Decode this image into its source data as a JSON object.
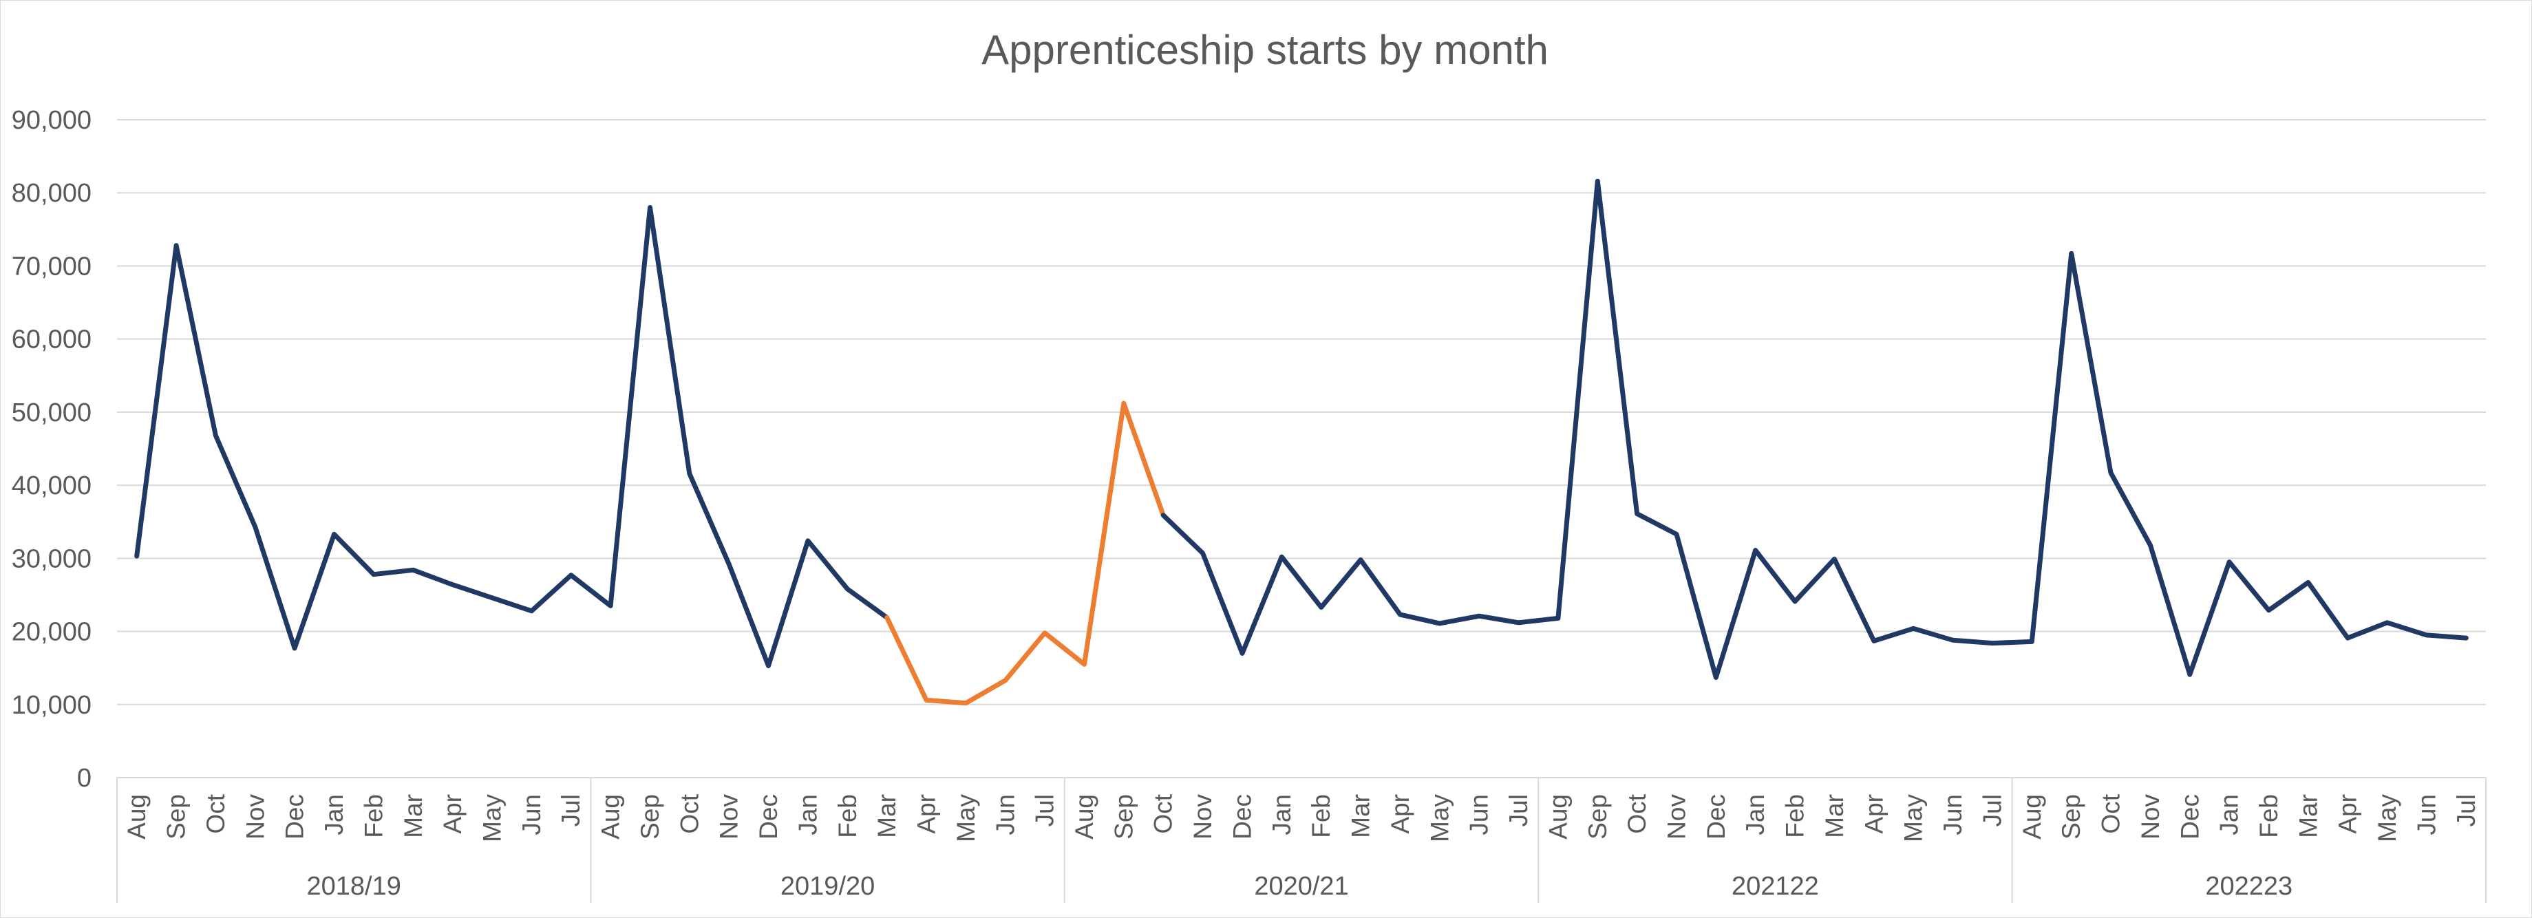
{
  "chart_data": {
    "type": "line",
    "title": "Apprenticeship starts by month",
    "xlabel": "",
    "ylabel": "",
    "ylim": [
      0,
      90000
    ],
    "yticks": [
      0,
      10000,
      20000,
      30000,
      40000,
      50000,
      60000,
      70000,
      80000,
      90000
    ],
    "ytick_labels": [
      "0",
      "10,000",
      "20,000",
      "30,000",
      "40,000",
      "50,000",
      "60,000",
      "70,000",
      "80,000",
      "90,000"
    ],
    "grid": "horizontal",
    "legend": "none",
    "months": [
      "Aug",
      "Sep",
      "Oct",
      "Nov",
      "Dec",
      "Jan",
      "Feb",
      "Mar",
      "Apr",
      "May",
      "Jun",
      "Jul"
    ],
    "groups": [
      "2018/19",
      "2019/20",
      "2020/21",
      "202122",
      "202223"
    ],
    "values": [
      30300,
      72800,
      46800,
      34300,
      17700,
      33300,
      27800,
      28400,
      26400,
      24600,
      22800,
      27700,
      23500,
      78000,
      41600,
      29200,
      15300,
      32400,
      25800,
      21900,
      10600,
      10200,
      13300,
      19800,
      15500,
      51200,
      35900,
      30700,
      17000,
      30200,
      23300,
      29800,
      22300,
      21100,
      22100,
      21200,
      21800,
      81600,
      36100,
      33300,
      13700,
      31100,
      24100,
      29900,
      18700,
      20400,
      18800,
      18400,
      18600,
      71700,
      41700,
      31800,
      14100,
      29500,
      22900,
      26700,
      19100,
      21200,
      19500,
      19100
    ],
    "highlight_range": [
      19,
      26
    ],
    "colors": {
      "main": "#203864",
      "highlight": "#ED7D31",
      "grid": "#d9d9d9",
      "text": "#595959"
    }
  }
}
